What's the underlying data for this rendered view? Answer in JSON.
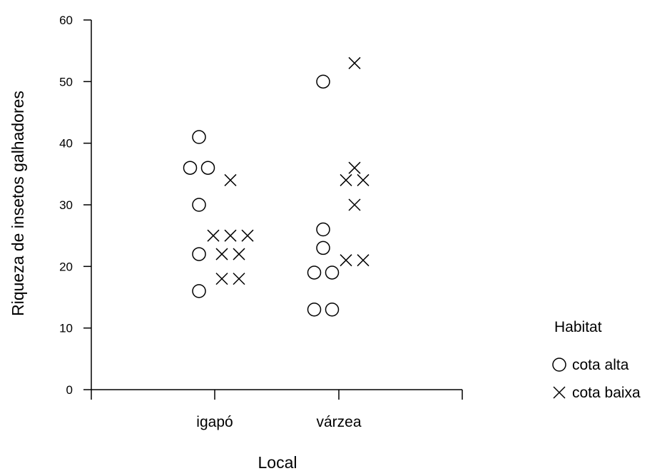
{
  "chart_data": {
    "type": "scatter",
    "title": "",
    "xlabel": "Local",
    "ylabel": "Riqueza de insetos galhadores",
    "categories": [
      "igapó",
      "várzea"
    ],
    "ylim": [
      0,
      60
    ],
    "yticks": [
      0,
      10,
      20,
      30,
      40,
      50,
      60
    ],
    "grid": false,
    "legend": {
      "title": "Habitat",
      "placement": "right"
    },
    "series": [
      {
        "name": "cota alta",
        "marker": "circle",
        "points": [
          {
            "x": "igapó",
            "y": 41
          },
          {
            "x": "igapó",
            "y": 36
          },
          {
            "x": "igapó",
            "y": 36
          },
          {
            "x": "igapó",
            "y": 30
          },
          {
            "x": "igapó",
            "y": 22
          },
          {
            "x": "igapó",
            "y": 16
          },
          {
            "x": "várzea",
            "y": 50
          },
          {
            "x": "várzea",
            "y": 26
          },
          {
            "x": "várzea",
            "y": 23
          },
          {
            "x": "várzea",
            "y": 19
          },
          {
            "x": "várzea",
            "y": 19
          },
          {
            "x": "várzea",
            "y": 13
          },
          {
            "x": "várzea",
            "y": 13
          }
        ]
      },
      {
        "name": "cota baixa",
        "marker": "cross",
        "points": [
          {
            "x": "igapó",
            "y": 34
          },
          {
            "x": "igapó",
            "y": 25
          },
          {
            "x": "igapó",
            "y": 25
          },
          {
            "x": "igapó",
            "y": 25
          },
          {
            "x": "igapó",
            "y": 22
          },
          {
            "x": "igapó",
            "y": 22
          },
          {
            "x": "igapó",
            "y": 18
          },
          {
            "x": "igapó",
            "y": 18
          },
          {
            "x": "várzea",
            "y": 53
          },
          {
            "x": "várzea",
            "y": 36
          },
          {
            "x": "várzea",
            "y": 34
          },
          {
            "x": "várzea",
            "y": 34
          },
          {
            "x": "várzea",
            "y": 30
          },
          {
            "x": "várzea",
            "y": 21
          },
          {
            "x": "várzea",
            "y": 21
          }
        ]
      }
    ]
  }
}
